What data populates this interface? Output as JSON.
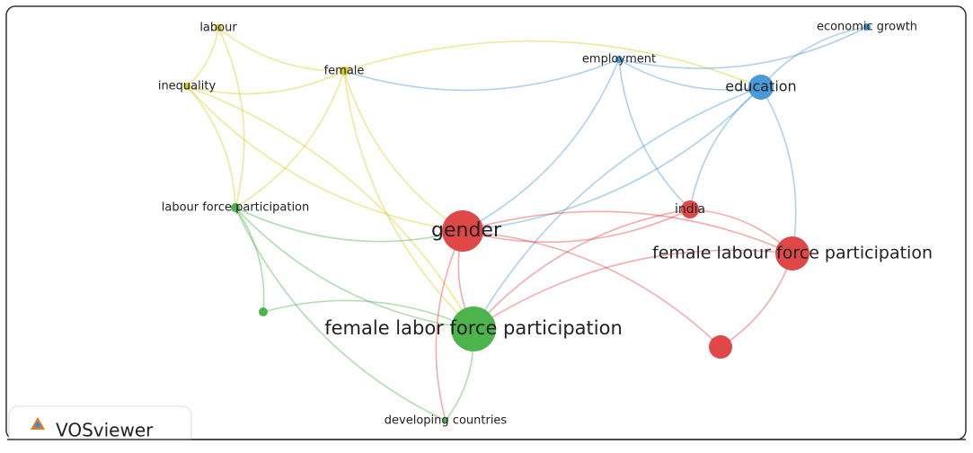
{
  "nodes": [
    {
      "label": "labour"
    },
    {
      "label": "inequality"
    },
    {
      "label": "female"
    },
    {
      "label": "employment"
    },
    {
      "label": "economic growth"
    },
    {
      "label": "education"
    },
    {
      "label": "labour force participation"
    },
    {
      "label": "gender"
    },
    {
      "label": "india"
    },
    {
      "label": "female labour force participation"
    },
    {
      "label": "female labor force participation"
    },
    {
      "label": "developing countries"
    }
  ],
  "branding": "VOSviewer"
}
